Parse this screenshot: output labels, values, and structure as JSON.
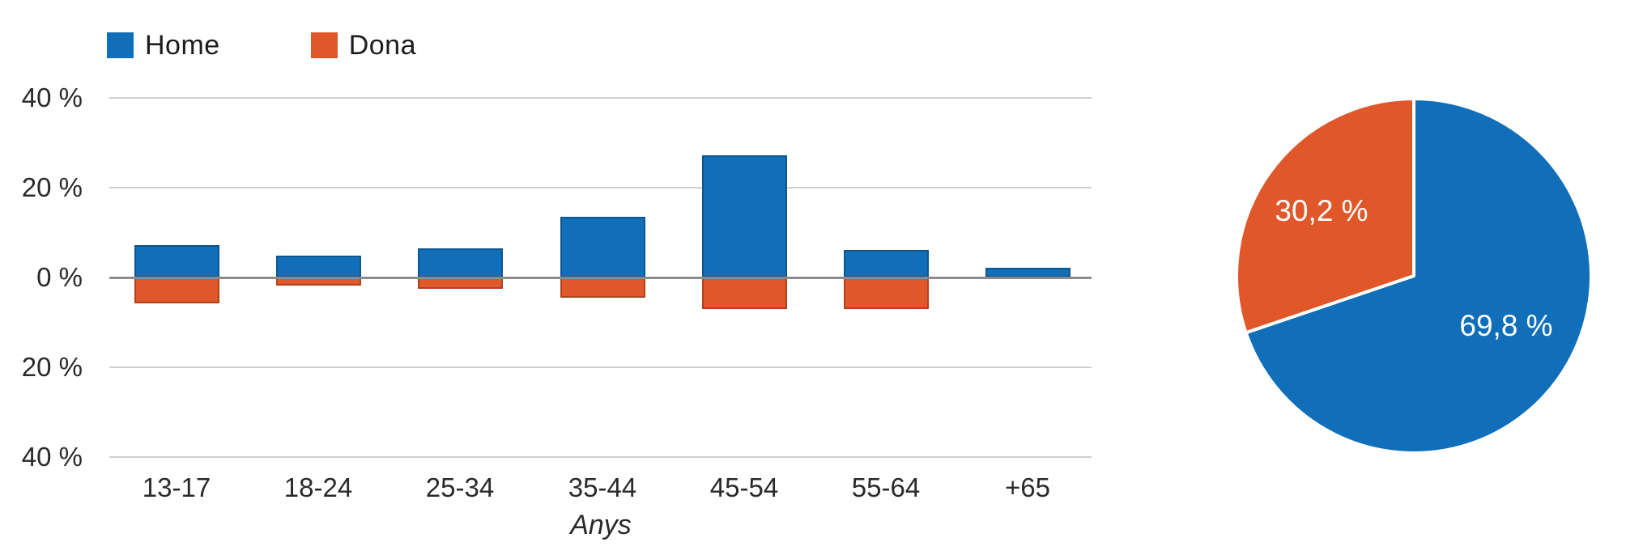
{
  "figure": {
    "background": "#ffffff",
    "text_color": "#2a2a2a"
  },
  "bar_chart": {
    "legend": [
      {
        "label": "Home",
        "color": "#106fb8"
      },
      {
        "label": "Dona",
        "color": "#e0572a"
      }
    ],
    "y_axis": {
      "tick_labels": [
        "40 %",
        "20 %",
        "0 %",
        "20 %",
        "40 %"
      ]
    },
    "x_axis": {
      "title": "Anys",
      "categories": [
        "13-17",
        "18-24",
        "25-34",
        "35-44",
        "45-54",
        "55-64",
        "+65"
      ]
    }
  },
  "chart_data": [
    {
      "type": "bar",
      "title": "",
      "categories": [
        "13-17",
        "18-24",
        "25-34",
        "35-44",
        "45-54",
        "55-64",
        "+65"
      ],
      "series": [
        {
          "name": "Home",
          "color": "#106fb8",
          "direction": "up",
          "values": [
            7.2,
            4.9,
            6.5,
            13.5,
            27.2,
            6.1,
            2.2
          ]
        },
        {
          "name": "Dona",
          "color": "#e0572a",
          "direction": "down",
          "values": [
            5.8,
            1.8,
            2.5,
            4.5,
            7.0,
            7.0,
            0
          ]
        }
      ],
      "xlabel": "Anys",
      "ylabel": "",
      "ylim": [
        -40,
        40
      ],
      "y_tick_step": 20,
      "y_tick_labels_abs": [
        "40 %",
        "20 %",
        "0 %",
        "20 %",
        "40 %"
      ],
      "grid": true,
      "legend_position": "top-left",
      "note": "Dona series is drawn mirrored below the zero axis"
    },
    {
      "type": "pie",
      "labels": [
        "Home",
        "Dona"
      ],
      "values": [
        69.8,
        30.2
      ],
      "value_labels": [
        "69,8 %",
        "30,2 %"
      ],
      "colors": [
        "#106fb8",
        "#e0572a"
      ],
      "start_angle_deg": 0,
      "direction": "clockwise",
      "label_color": "#ffffff"
    }
  ]
}
